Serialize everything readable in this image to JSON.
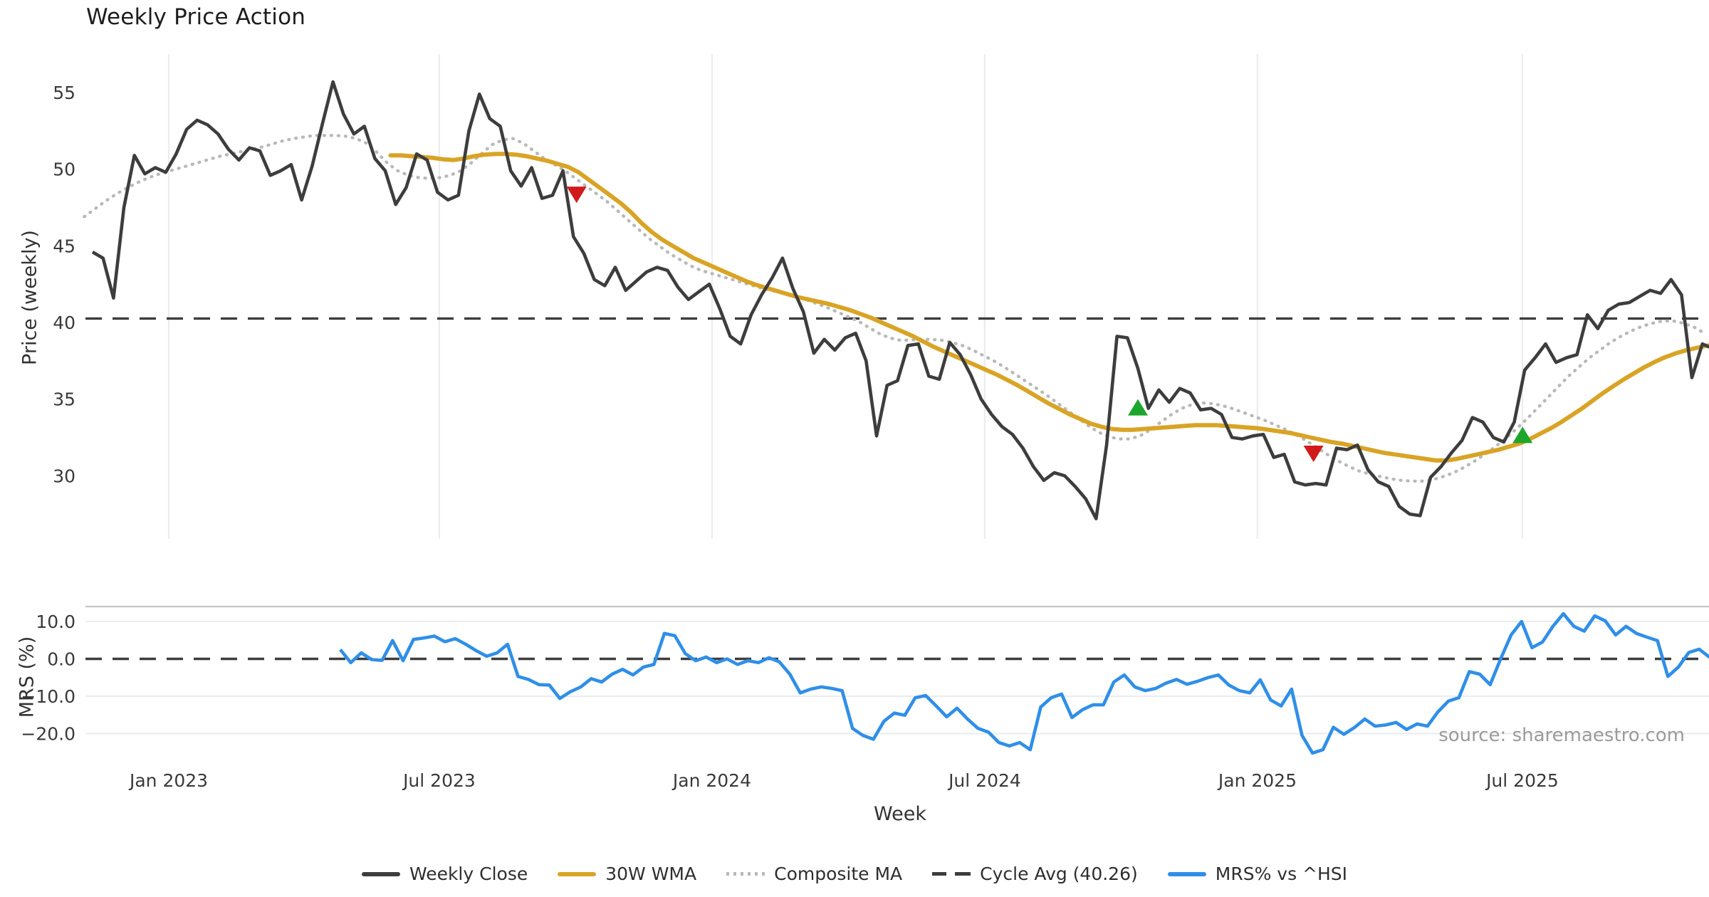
{
  "title": "Weekly Price Action",
  "axes": {
    "price_label": "Price (weekly)",
    "mrs_label": "MRS (%)",
    "x_label": "Week"
  },
  "source_note": "source: sharemaestro.com",
  "colors": {
    "close": "#3d3d3d",
    "wma": "#d9a425",
    "composite": "#b9b9b9",
    "cycle": "#3d3d3d",
    "mrs": "#2f8fe8",
    "buy": "#1ca62b",
    "sell": "#d11a1a",
    "grid": "#ebedf0",
    "panel_border": "#c6c6c6",
    "tick_text": "#3a3a3a"
  },
  "legend": [
    {
      "label": "Weekly Close",
      "swatch": "solid",
      "color": "#3d3d3d"
    },
    {
      "label": "30W WMA",
      "swatch": "solid",
      "color": "#d9a425"
    },
    {
      "label": "Composite MA",
      "swatch": "dotted",
      "color": "#b9b9b9"
    },
    {
      "label": "Cycle Avg (40.26)",
      "swatch": "dashed",
      "color": "#3d3d3d"
    },
    {
      "label": "MRS% vs ^HSI",
      "swatch": "solid",
      "color": "#2f8fe8"
    }
  ],
  "chart_data": [
    {
      "type": "line",
      "title": "Weekly Price Action",
      "xlabel": "Week",
      "ylabel": "Price (weekly)",
      "ylim": [
        25.7,
        57.6
      ],
      "y_ticks": [
        55,
        50,
        45,
        40,
        35,
        30
      ],
      "x_ticks": [
        {
          "label": "Jan 2023",
          "week": 7.29
        },
        {
          "label": "Jul 2023",
          "week": 33.17
        },
        {
          "label": "Jan 2024",
          "week": 59.26
        },
        {
          "label": "Jul 2024",
          "week": 85.35
        },
        {
          "label": "Jan 2025",
          "week": 111.44
        },
        {
          "label": "Jul 2025",
          "week": 136.78
        }
      ],
      "grid": "vertical-only",
      "legend_position": "bottom",
      "cycle_avg": 40.26,
      "series": [
        {
          "name": "Weekly Close",
          "style": "solid",
          "color": "#3d3d3d",
          "start_week": 0,
          "values": [
            44.6,
            44.2,
            41.6,
            47.5,
            50.9,
            49.7,
            50.1,
            49.8,
            51.0,
            52.6,
            53.2,
            52.9,
            52.3,
            51.3,
            50.6,
            51.4,
            51.2,
            49.6,
            49.9,
            50.3,
            48.0,
            50.2,
            53.0,
            55.7,
            53.6,
            52.3,
            52.8,
            50.7,
            49.9,
            47.7,
            48.8,
            51.0,
            50.6,
            48.5,
            48.0,
            48.3,
            52.5,
            54.9,
            53.3,
            52.8,
            49.9,
            48.9,
            50.1,
            48.1,
            48.3,
            49.9,
            45.6,
            44.5,
            42.8,
            42.4,
            43.6,
            42.1,
            42.7,
            43.3,
            43.6,
            43.4,
            42.3,
            41.5,
            42.0,
            42.5,
            40.9,
            39.1,
            38.6,
            40.5,
            41.8,
            42.9,
            44.2,
            42.2,
            40.7,
            38.0,
            38.9,
            38.2,
            39.0,
            39.3,
            37.5,
            32.6,
            35.9,
            36.2,
            38.5,
            38.6,
            36.5,
            36.3,
            38.7,
            37.9,
            36.6,
            35.0,
            34.0,
            33.2,
            32.7,
            31.8,
            30.6,
            29.7,
            30.2,
            30.0,
            29.3,
            28.5,
            27.2,
            32.0,
            39.1,
            39.0,
            37.0,
            34.4,
            35.6,
            34.8,
            35.7,
            35.4,
            34.3,
            34.4,
            34.0,
            32.5,
            32.4,
            32.6,
            32.7,
            31.2,
            31.4,
            29.6,
            29.4,
            29.5,
            29.4,
            31.8,
            31.7,
            32.0,
            30.4,
            29.6,
            29.3,
            28.0,
            27.5,
            27.4,
            29.9,
            30.6,
            31.5,
            32.3,
            33.8,
            33.5,
            32.5,
            32.2,
            33.5,
            36.9,
            37.7,
            38.6,
            37.4,
            37.7,
            37.9,
            40.5,
            39.6,
            40.8,
            41.2,
            41.3,
            41.7,
            42.1,
            41.9,
            42.8,
            41.8,
            36.4,
            38.6,
            38.3
          ]
        },
        {
          "name": "30W WMA",
          "style": "solid",
          "color": "#d9a425",
          "start_week": 28.5,
          "values": [
            50.9,
            50.9,
            50.85,
            50.8,
            50.75,
            50.65,
            50.6,
            50.7,
            50.85,
            50.95,
            51.0,
            51.0,
            50.95,
            50.85,
            50.7,
            50.55,
            50.35,
            50.15,
            49.8,
            49.3,
            48.8,
            48.3,
            47.8,
            47.2,
            46.5,
            45.9,
            45.4,
            45.0,
            44.6,
            44.2,
            43.9,
            43.6,
            43.3,
            43.0,
            42.7,
            42.45,
            42.25,
            42.05,
            41.85,
            41.65,
            41.5,
            41.35,
            41.2,
            41.0,
            40.8,
            40.55,
            40.3,
            40.0,
            39.7,
            39.4,
            39.1,
            38.75,
            38.4,
            38.1,
            37.8,
            37.5,
            37.2,
            36.9,
            36.6,
            36.25,
            35.9,
            35.5,
            35.1,
            34.7,
            34.35,
            34.0,
            33.7,
            33.4,
            33.2,
            33.05,
            33.0,
            33.0,
            33.05,
            33.1,
            33.15,
            33.2,
            33.25,
            33.3,
            33.3,
            33.3,
            33.25,
            33.2,
            33.15,
            33.1,
            33.0,
            32.9,
            32.8,
            32.65,
            32.5,
            32.35,
            32.2,
            32.1,
            31.95,
            31.8,
            31.65,
            31.5,
            31.4,
            31.3,
            31.2,
            31.1,
            31.0,
            31.0,
            31.1,
            31.25,
            31.4,
            31.55,
            31.7,
            31.9,
            32.1,
            32.4,
            32.75,
            33.1,
            33.5,
            33.95,
            34.4,
            34.9,
            35.4,
            35.85,
            36.3,
            36.7,
            37.1,
            37.45,
            37.75,
            38.0,
            38.2,
            38.35,
            38.5
          ]
        },
        {
          "name": "Composite MA",
          "style": "dotted",
          "color": "#b9b9b9",
          "start_week": -0.8,
          "values": [
            46.9,
            47.4,
            47.9,
            48.35,
            48.75,
            49.1,
            49.4,
            49.65,
            49.85,
            50.05,
            50.25,
            50.45,
            50.65,
            50.85,
            51.0,
            51.15,
            51.3,
            51.45,
            51.65,
            51.85,
            52.0,
            52.1,
            52.2,
            52.2,
            52.2,
            52.15,
            52.0,
            51.7,
            51.1,
            50.4,
            49.9,
            49.6,
            49.45,
            49.4,
            49.45,
            49.6,
            49.9,
            50.4,
            51.0,
            51.6,
            51.9,
            52.0,
            51.7,
            51.2,
            50.7,
            50.3,
            49.9,
            49.4,
            48.9,
            48.4,
            47.9,
            47.3,
            46.7,
            46.1,
            45.5,
            45.0,
            44.5,
            44.1,
            43.7,
            43.4,
            43.2,
            43.0,
            42.8,
            42.6,
            42.4,
            42.2,
            42.05,
            41.9,
            41.7,
            41.5,
            41.25,
            41.0,
            40.7,
            40.4,
            40.1,
            39.7,
            39.3,
            39.0,
            38.85,
            38.85,
            38.9,
            38.9,
            38.85,
            38.7,
            38.5,
            38.2,
            37.85,
            37.5,
            37.1,
            36.65,
            36.2,
            35.75,
            35.3,
            34.8,
            34.3,
            33.8,
            33.3,
            32.85,
            32.55,
            32.4,
            32.4,
            32.6,
            33.0,
            33.5,
            34.0,
            34.4,
            34.65,
            34.75,
            34.7,
            34.55,
            34.35,
            34.1,
            33.85,
            33.6,
            33.3,
            33.0,
            32.65,
            32.25,
            31.8,
            31.35,
            30.95,
            30.6,
            30.3,
            30.1,
            29.95,
            29.8,
            29.7,
            29.65,
            29.65,
            29.75,
            29.95,
            30.2,
            30.55,
            30.95,
            31.4,
            31.9,
            32.45,
            33.05,
            33.7,
            34.4,
            35.1,
            35.8,
            36.5,
            37.1,
            37.7,
            38.2,
            38.7,
            39.1,
            39.45,
            39.75,
            39.95,
            40.1,
            40.1,
            39.95,
            39.7,
            39.3
          ]
        },
        {
          "name": "Cycle Avg (40.26)",
          "style": "dashed",
          "color": "#3d3d3d",
          "value": 40.26
        }
      ],
      "markers": {
        "buy": [
          {
            "week": 100.0,
            "price": 34.4
          },
          {
            "week": 136.8,
            "price": 32.6
          }
        ],
        "sell": [
          {
            "week": 46.3,
            "price": 48.4
          },
          {
            "week": 116.8,
            "price": 31.5
          }
        ]
      }
    },
    {
      "type": "line",
      "ylabel": "MRS (%)",
      "ylim": [
        -25.6,
        14.0
      ],
      "y_ticks": [
        10.0,
        0.0,
        -10.0,
        -20.0
      ],
      "zero_dashed_line": 0.0,
      "series": [
        {
          "name": "MRS% vs ^HSI",
          "style": "solid",
          "color": "#2f8fe8",
          "start_week": 23.7,
          "values": [
            2.5,
            -1.0,
            1.6,
            -0.2,
            -0.4,
            4.9,
            -0.5,
            5.2,
            5.6,
            6.1,
            4.6,
            5.4,
            3.9,
            2.2,
            0.7,
            1.6,
            3.9,
            -4.7,
            -5.5,
            -6.9,
            -7.0,
            -10.6,
            -8.8,
            -7.5,
            -5.3,
            -6.2,
            -4.1,
            -2.8,
            -4.3,
            -2.2,
            -1.5,
            6.8,
            6.2,
            1.4,
            -0.5,
            0.5,
            -1.0,
            0.0,
            -1.5,
            -0.5,
            -1.0,
            0.3,
            -0.8,
            -4.1,
            -9.1,
            -8.1,
            -7.5,
            -7.9,
            -8.5,
            -18.6,
            -20.5,
            -21.5,
            -16.7,
            -14.5,
            -15.1,
            -10.4,
            -9.8,
            -12.6,
            -15.5,
            -13.2,
            -16.1,
            -18.6,
            -19.6,
            -22.4,
            -23.3,
            -22.4,
            -24.3,
            -12.9,
            -10.4,
            -9.4,
            -15.7,
            -13.6,
            -12.3,
            -12.3,
            -6.2,
            -4.3,
            -7.5,
            -8.5,
            -7.9,
            -6.5,
            -5.5,
            -6.8,
            -6.0,
            -5.0,
            -4.3,
            -7.0,
            -8.5,
            -9.1,
            -5.6,
            -11.0,
            -12.6,
            -8.1,
            -20.5,
            -25.2,
            -24.3,
            -18.3,
            -20.2,
            -18.4,
            -16.1,
            -18.0,
            -17.7,
            -17.0,
            -18.9,
            -17.4,
            -18.0,
            -14.2,
            -11.3,
            -10.4,
            -3.4,
            -4.1,
            -6.9,
            0.0,
            6.4,
            10.0,
            3.0,
            4.5,
            8.7,
            12.1,
            8.7,
            7.4,
            11.5,
            10.2,
            6.4,
            8.7,
            6.8,
            5.8,
            4.9,
            -4.7,
            -2.2,
            1.7,
            2.6,
            0.4
          ]
        }
      ]
    }
  ]
}
